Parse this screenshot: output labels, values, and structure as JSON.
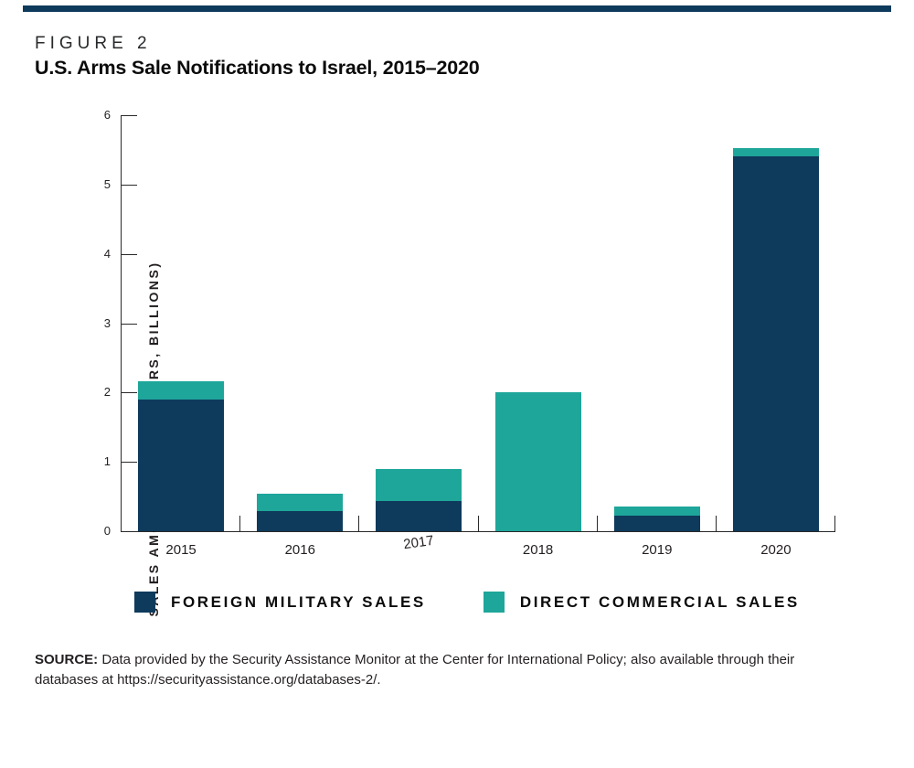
{
  "figure": {
    "label": "FIGURE 2",
    "title": "U.S. Arms Sale Notifications to Israel, 2015–2020"
  },
  "chart_data": {
    "type": "bar",
    "stacked": true,
    "title": "U.S. Arms Sale Notifications to Israel, 2015–2020",
    "categories": [
      "2015",
      "2016",
      "2017",
      "2018",
      "2019",
      "2020"
    ],
    "series": [
      {
        "name": "FOREIGN MILITARY SALES",
        "color": "#0e3a5c",
        "values": [
          1.9,
          0.29,
          0.44,
          0,
          0.23,
          5.41
        ]
      },
      {
        "name": "DIRECT COMMERCIAL SALES",
        "color": "#1ea69a",
        "values": [
          0.26,
          0.25,
          0.46,
          2.0,
          0.13,
          0.12
        ]
      }
    ],
    "xlabel": "",
    "ylabel": "SALES AMOUNT (U.S. DOLLARS, BILLIONS)",
    "yticks": [
      0,
      1,
      2,
      3,
      4,
      5,
      6
    ],
    "ylim": [
      0,
      6
    ],
    "grid": false,
    "legend_position": "bottom"
  },
  "colors": {
    "foreign_military_sales": "#0e3a5c",
    "direct_commercial_sales": "#1ea69a",
    "top_rule": "#0e3a5c",
    "axis": "#2a2a2a",
    "text": "#231f20"
  },
  "source": {
    "label": "SOURCE:",
    "text": "Data provided by the Security Assistance Monitor at the Center for International Policy; also available through their databases at https://securityassistance.org/databases-2/."
  }
}
